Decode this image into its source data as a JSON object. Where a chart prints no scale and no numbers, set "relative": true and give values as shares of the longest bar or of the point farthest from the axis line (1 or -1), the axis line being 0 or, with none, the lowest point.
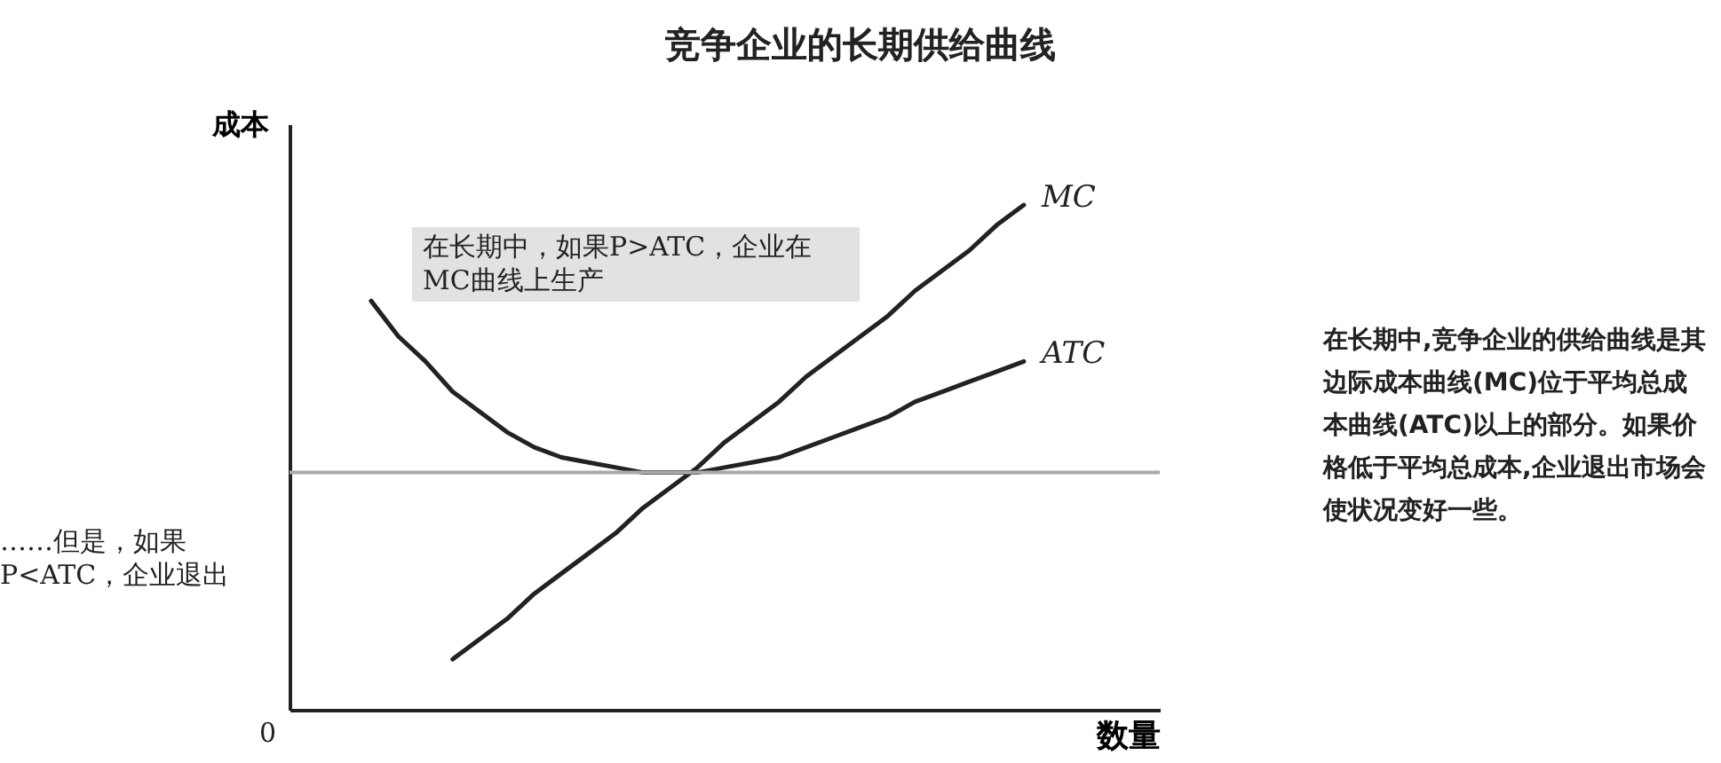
{
  "chart_data": {
    "type": "line",
    "relative": true,
    "title": "竞争企业的长期供给曲线",
    "xlabel": "数量",
    "ylabel": "成本",
    "categories": [
      null,
      null,
      null,
      null,
      null,
      null,
      null,
      null,
      null,
      null,
      null,
      null,
      null,
      null,
      null,
      null,
      null,
      null,
      null,
      null,
      null,
      null,
      null,
      null,
      null,
      null,
      null,
      null,
      null,
      null,
      null,
      null,
      null
    ],
    "series": [
      {
        "name": "MC",
        "color": "#222222",
        "values": [
          null,
          null,
          null,
          null,
          null,
          null,
          0.1,
          0.14,
          0.18,
          0.23,
          0.27,
          0.31,
          0.35,
          0.4,
          0.44,
          0.48,
          0.53,
          0.57,
          0.61,
          0.66,
          0.7,
          0.74,
          0.78,
          0.83,
          0.87,
          0.91,
          0.96,
          1.0,
          null,
          null,
          null,
          null,
          null
        ]
      },
      {
        "name": "ATC",
        "color": "#222222",
        "values": [
          null,
          null,
          null,
          0.81,
          0.74,
          0.69,
          0.63,
          0.59,
          0.55,
          0.52,
          0.5,
          0.49,
          0.48,
          0.47,
          0.47,
          0.47,
          0.48,
          0.49,
          0.5,
          0.52,
          0.54,
          0.56,
          0.58,
          0.61,
          0.63,
          0.65,
          0.67,
          0.69,
          null,
          null,
          null,
          null,
          null
        ]
      }
    ],
    "ref_lines": [
      {
        "axis": "y",
        "value": 0.47,
        "color": "#aaaaaa"
      }
    ],
    "annotations": [
      "在长期中，如果P>ATC，企业在MC曲线上生产",
      "……但是，如果P<ATC，企业退出",
      "在长期中,竞争企业的供给曲线是其边际成本曲线(MC)位于平均总成本曲线(ATC)以上的部分。如果价格低于平均总成本,企业退出市场会使状况变好一些。",
      "0"
    ],
    "legend": false
  }
}
